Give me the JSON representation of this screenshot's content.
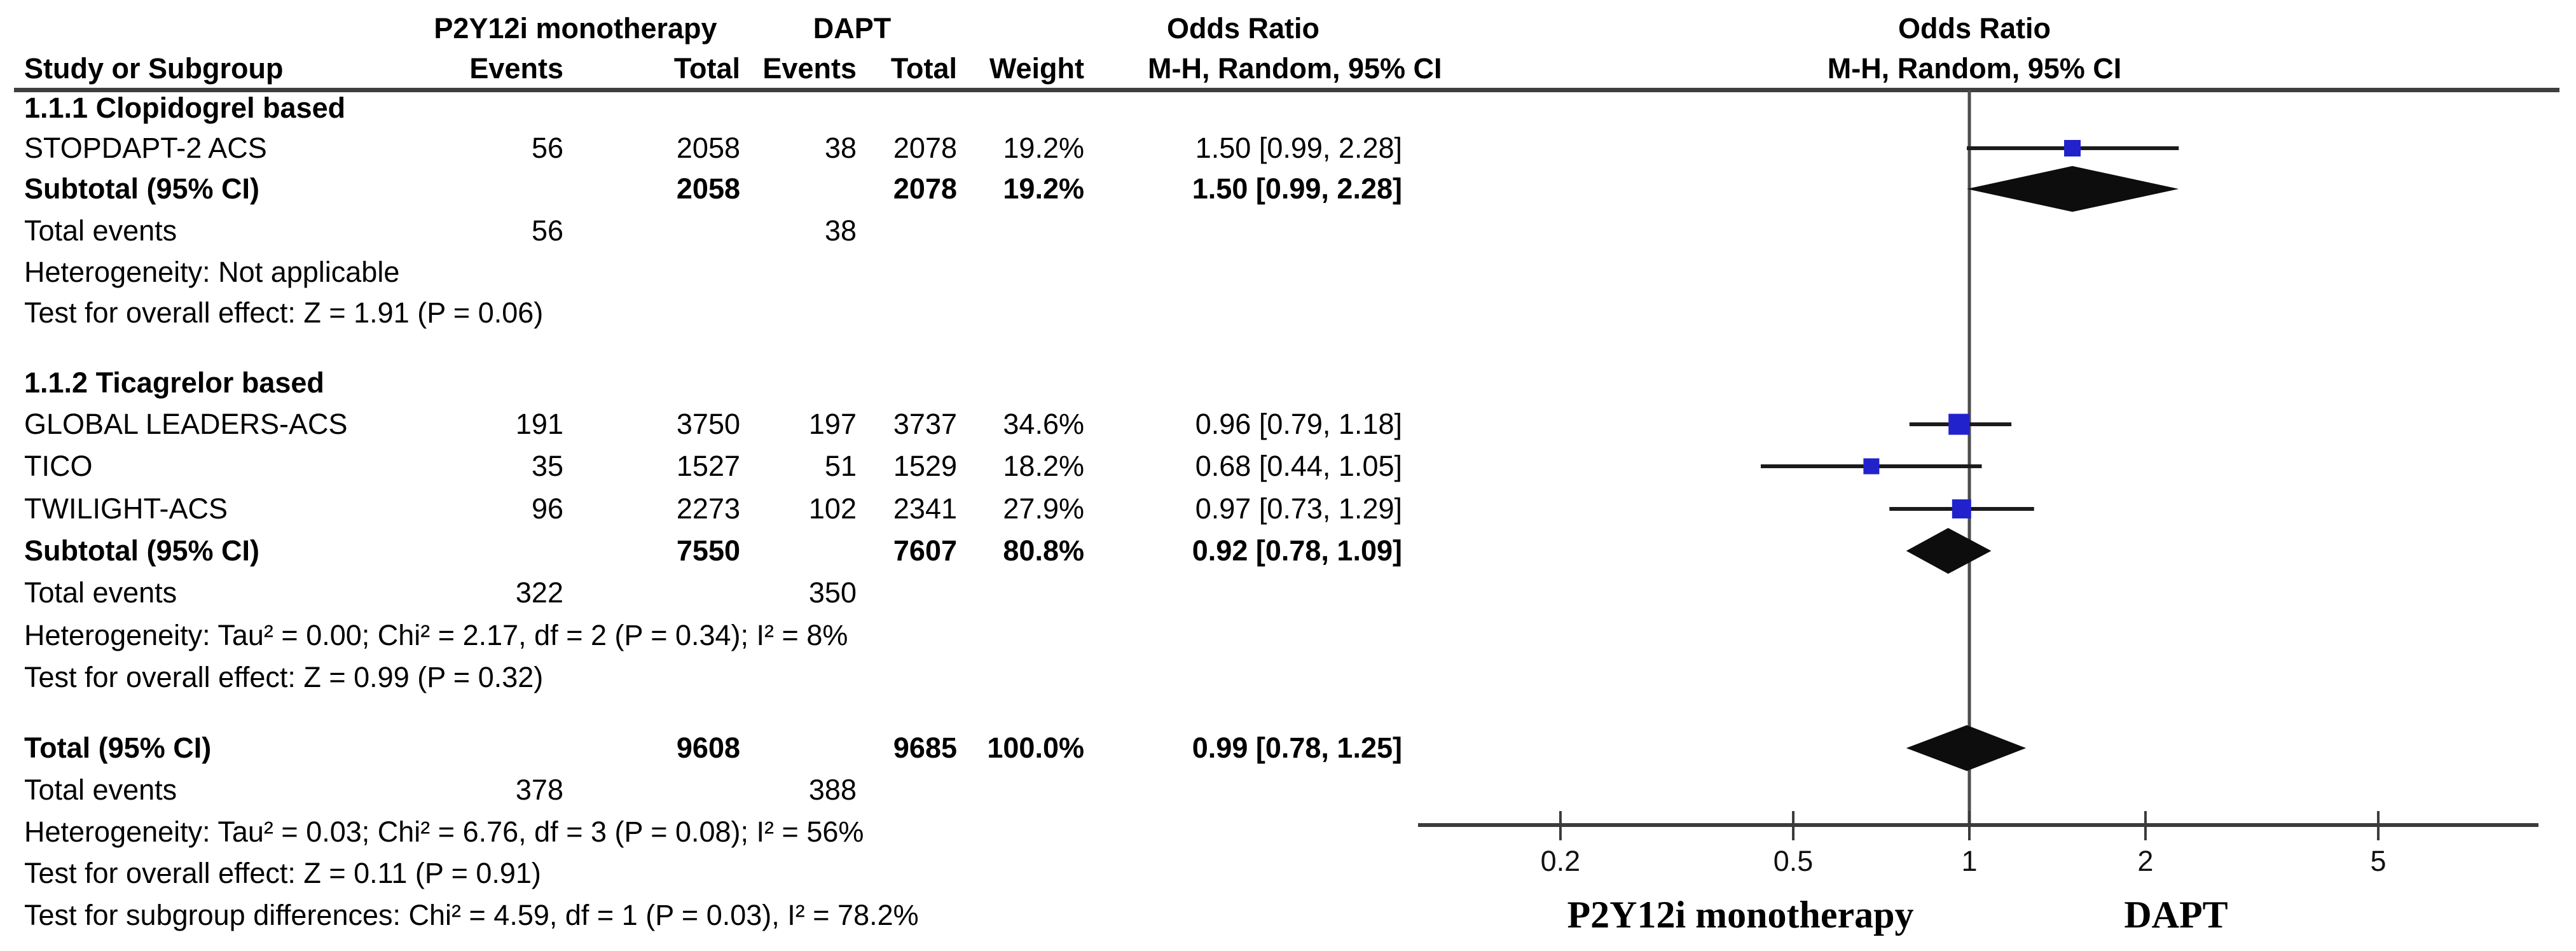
{
  "header": {
    "group1": "P2Y12i monotherapy",
    "group2": "DAPT",
    "or_col_table": "Odds Ratio",
    "or_col_plot": "Odds Ratio",
    "study": "Study or Subgroup",
    "events1": "Events",
    "total1": "Total",
    "events2": "Events",
    "total2": "Total",
    "weight": "Weight",
    "mh_table": "M-H, Random, 95% CI",
    "mh_plot": "M-H, Random, 95% CI"
  },
  "table": {
    "rows": [
      {
        "study": "1.1.1 Clopidogrel based"
      },
      {
        "study": "STOPDAPT-2 ACS",
        "e1": "56",
        "t1": "2058",
        "e2": "38",
        "t2": "2078",
        "w": "19.2%",
        "or": "1.50 [0.99, 2.28]"
      },
      {
        "study": "Subtotal (95% CI)",
        "t1": "2058",
        "t2": "2078",
        "w": "19.2%",
        "or": "1.50 [0.99, 2.28]"
      },
      {
        "study": "Total events",
        "e1": "56",
        "e2": "38"
      },
      {
        "study": "Heterogeneity: Not applicable"
      },
      {
        "study": "Test for overall effect: Z = 1.91 (P = 0.06)"
      },
      {
        "study": "1.1.2 Ticagrelor based"
      },
      {
        "study": "GLOBAL LEADERS-ACS",
        "e1": "191",
        "t1": "3750",
        "e2": "197",
        "t2": "3737",
        "w": "34.6%",
        "or": "0.96 [0.79, 1.18]"
      },
      {
        "study": "TICO",
        "e1": "35",
        "t1": "1527",
        "e2": "51",
        "t2": "1529",
        "w": "18.2%",
        "or": "0.68 [0.44, 1.05]"
      },
      {
        "study": "TWILIGHT-ACS",
        "e1": "96",
        "t1": "2273",
        "e2": "102",
        "t2": "2341",
        "w": "27.9%",
        "or": "0.97 [0.73, 1.29]"
      },
      {
        "study": "Subtotal (95% CI)",
        "t1": "7550",
        "t2": "7607",
        "w": "80.8%",
        "or": "0.92 [0.78, 1.09]"
      },
      {
        "study": "Total events",
        "e1": "322",
        "e2": "350"
      },
      {
        "study": "Heterogeneity: Tau² = 0.00; Chi² = 2.17, df = 2 (P = 0.34); I² = 8%"
      },
      {
        "study": "Test for overall effect: Z = 0.99 (P = 0.32)"
      },
      {
        "study": "Total (95% CI)",
        "t1": "9608",
        "t2": "9685",
        "w": "100.0%",
        "or": "0.99 [0.78, 1.25]"
      },
      {
        "study": "Total events",
        "e1": "378",
        "e2": "388"
      },
      {
        "study": "Heterogeneity: Tau² = 0.03; Chi² = 6.76, df = 3 (P = 0.08); I² = 56%"
      },
      {
        "study": "Test for overall effect: Z = 0.11 (P = 0.91)"
      },
      {
        "study": "Test for subgroup differences: Chi² = 4.59, df = 1 (P = 0.03), I² = 78.2%"
      }
    ]
  },
  "chart_data": {
    "type": "forest",
    "effect_measure": "Odds Ratio",
    "method": "M-H, Random, 95% CI",
    "x_scale": "log",
    "x_ticks": [
      0.2,
      0.5,
      1,
      2,
      5
    ],
    "x_tick_labels": [
      "0.2",
      "0.5",
      "1",
      "2",
      "5"
    ],
    "null_value": 1,
    "xlabel_left": "P2Y12i monotherapy",
    "xlabel_right": "DAPT",
    "colors": {
      "square": "#2222cc",
      "diamond": "#0d0d0d",
      "ci_line": "#1b1b1b",
      "axis": "#3b3b3b",
      "null_line": "#4c4c4c",
      "header_rule": "#3f3f3f"
    },
    "groups": [
      {
        "name": "1.1.1 Clopidogrel based",
        "studies": [
          {
            "name": "STOPDAPT-2 ACS",
            "events_mono": 56,
            "total_mono": 2058,
            "events_dapt": 38,
            "total_dapt": 2078,
            "weight_pct": 19.2,
            "or": 1.5,
            "ci": [
              0.99,
              2.28
            ]
          }
        ],
        "subtotal": {
          "total_mono": 2058,
          "total_dapt": 2078,
          "weight_pct": 19.2,
          "or": 1.5,
          "ci": [
            0.99,
            2.28
          ]
        },
        "total_events": [
          56,
          38
        ],
        "heterogeneity": "Not applicable",
        "overall_effect": "Z = 1.91 (P = 0.06)"
      },
      {
        "name": "1.1.2 Ticagrelor based",
        "studies": [
          {
            "name": "GLOBAL LEADERS-ACS",
            "events_mono": 191,
            "total_mono": 3750,
            "events_dapt": 197,
            "total_dapt": 3737,
            "weight_pct": 34.6,
            "or": 0.96,
            "ci": [
              0.79,
              1.18
            ]
          },
          {
            "name": "TICO",
            "events_mono": 35,
            "total_mono": 1527,
            "events_dapt": 51,
            "total_dapt": 1529,
            "weight_pct": 18.2,
            "or": 0.68,
            "ci": [
              0.44,
              1.05
            ]
          },
          {
            "name": "TWILIGHT-ACS",
            "events_mono": 96,
            "total_mono": 2273,
            "events_dapt": 102,
            "total_dapt": 2341,
            "weight_pct": 27.9,
            "or": 0.97,
            "ci": [
              0.73,
              1.29
            ]
          }
        ],
        "subtotal": {
          "total_mono": 7550,
          "total_dapt": 7607,
          "weight_pct": 80.8,
          "or": 0.92,
          "ci": [
            0.78,
            1.09
          ]
        },
        "total_events": [
          322,
          350
        ],
        "heterogeneity": "Tau² = 0.00; Chi² = 2.17, df = 2 (P = 0.34); I² = 8%",
        "overall_effect": "Z = 0.99 (P = 0.32)"
      }
    ],
    "overall": {
      "total_mono": 9608,
      "total_dapt": 9685,
      "weight_pct": 100.0,
      "or": 0.99,
      "ci": [
        0.78,
        1.25
      ],
      "total_events": [
        378,
        388
      ],
      "heterogeneity": "Tau² = 0.03; Chi² = 6.76, df = 3 (P = 0.08); I² = 56%",
      "overall_effect": "Z = 0.11 (P = 0.91)",
      "subgroup_differences": "Chi² = 4.59, df = 1 (P = 0.03), I² = 78.2%"
    },
    "markers": [
      {
        "row": 1,
        "kind": "square",
        "or": 1.5,
        "lo": 0.99,
        "hi": 2.28,
        "weight_pct": 19.2
      },
      {
        "row": 2,
        "kind": "diamond",
        "or": 1.5,
        "lo": 0.99,
        "hi": 2.28
      },
      {
        "row": 7,
        "kind": "square",
        "or": 0.96,
        "lo": 0.79,
        "hi": 1.18,
        "weight_pct": 34.6
      },
      {
        "row": 8,
        "kind": "square",
        "or": 0.68,
        "lo": 0.44,
        "hi": 1.05,
        "weight_pct": 18.2
      },
      {
        "row": 9,
        "kind": "square",
        "or": 0.97,
        "lo": 0.73,
        "hi": 1.29,
        "weight_pct": 27.9
      },
      {
        "row": 10,
        "kind": "diamond",
        "or": 0.92,
        "lo": 0.78,
        "hi": 1.09
      },
      {
        "row": 14,
        "kind": "diamond",
        "or": 0.99,
        "lo": 0.78,
        "hi": 1.25
      }
    ]
  }
}
